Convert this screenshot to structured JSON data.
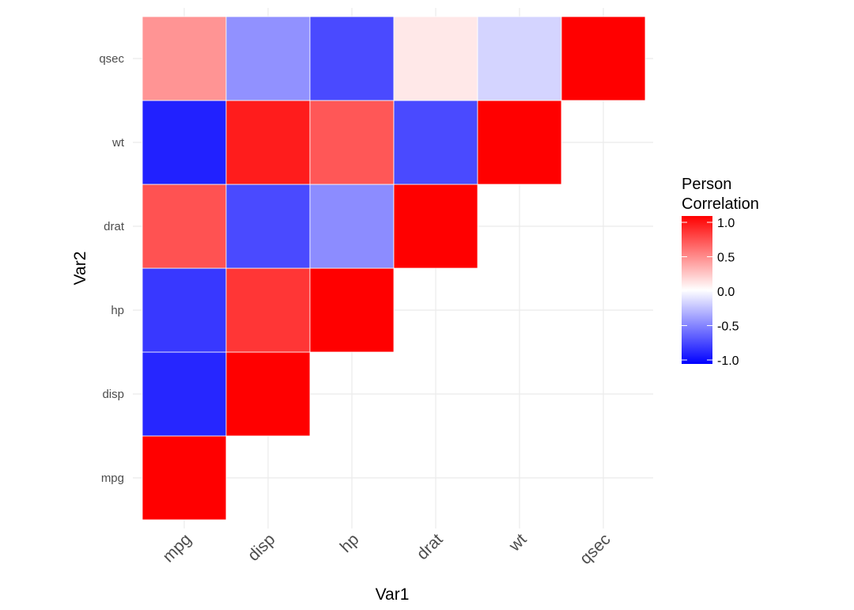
{
  "chart_data": {
    "type": "heatmap",
    "x_categories": [
      "mpg",
      "disp",
      "hp",
      "drat",
      "wt",
      "qsec"
    ],
    "y_categories": [
      "mpg",
      "disp",
      "hp",
      "drat",
      "wt",
      "qsec"
    ],
    "cells": [
      {
        "x": "mpg",
        "y": "mpg",
        "value": 1.0
      },
      {
        "x": "mpg",
        "y": "disp",
        "value": -0.85
      },
      {
        "x": "mpg",
        "y": "hp",
        "value": -0.78
      },
      {
        "x": "mpg",
        "y": "drat",
        "value": 0.68
      },
      {
        "x": "mpg",
        "y": "wt",
        "value": -0.87
      },
      {
        "x": "mpg",
        "y": "qsec",
        "value": 0.42
      },
      {
        "x": "disp",
        "y": "disp",
        "value": 1.0
      },
      {
        "x": "disp",
        "y": "hp",
        "value": 0.79
      },
      {
        "x": "disp",
        "y": "drat",
        "value": -0.71
      },
      {
        "x": "disp",
        "y": "wt",
        "value": 0.89
      },
      {
        "x": "disp",
        "y": "qsec",
        "value": -0.43
      },
      {
        "x": "hp",
        "y": "hp",
        "value": 1.0
      },
      {
        "x": "hp",
        "y": "drat",
        "value": -0.45
      },
      {
        "x": "hp",
        "y": "wt",
        "value": 0.66
      },
      {
        "x": "hp",
        "y": "qsec",
        "value": -0.71
      },
      {
        "x": "drat",
        "y": "drat",
        "value": 1.0
      },
      {
        "x": "drat",
        "y": "wt",
        "value": -0.71
      },
      {
        "x": "drat",
        "y": "qsec",
        "value": 0.09
      },
      {
        "x": "wt",
        "y": "wt",
        "value": 1.0
      },
      {
        "x": "wt",
        "y": "qsec",
        "value": -0.17
      },
      {
        "x": "qsec",
        "y": "qsec",
        "value": 1.0
      }
    ],
    "xlabel": "Var1",
    "ylabel": "Var2",
    "legend": {
      "title_lines": [
        "Person",
        "Correlation"
      ],
      "ticks": [
        1.0,
        0.5,
        0.0,
        -0.5,
        -1.0
      ],
      "tick_labels": [
        "1.0",
        "0.5",
        "0.0",
        "-0.5",
        "-1.0"
      ],
      "position": "right"
    },
    "color_scale": {
      "low": "#0000ff",
      "mid": "#ffffff",
      "high": "#ff0000",
      "limits": [
        -1,
        1
      ]
    },
    "grid": true
  }
}
